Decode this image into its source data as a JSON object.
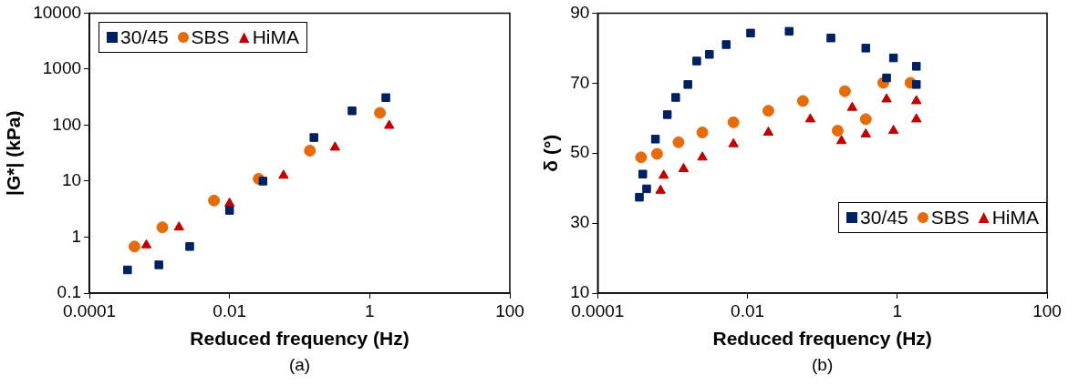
{
  "chart_data": [
    {
      "type": "scatter",
      "xlabel": "Reduced frequency (Hz)",
      "ylabel": "|G*| (kPa)",
      "log": "xy",
      "grid": false,
      "legend": "top left",
      "xlim": [
        0.0001,
        100
      ],
      "xticks": [
        0.0001,
        0.01,
        1,
        100
      ],
      "ylim": [
        0.1,
        10000
      ],
      "yticks": [
        0.1,
        1,
        10,
        100,
        1000,
        10000
      ],
      "annotations": [
        "(a)"
      ],
      "series": [
        {
          "name": "30/45",
          "color": "#002060",
          "marker": "square",
          "x": [
            0.00035,
            0.00098,
            0.0027,
            0.01,
            0.03,
            0.16,
            0.56,
            1.7
          ],
          "values": [
            0.26,
            0.32,
            0.68,
            3,
            10,
            60,
            180,
            310
          ]
        },
        {
          "name": "SBS",
          "color": "#e46c0a",
          "marker": "circle",
          "x": [
            0.00044,
            0.0011,
            0.006,
            0.026,
            0.14,
            1.4
          ],
          "values": [
            0.68,
            1.5,
            4.5,
            11,
            35,
            166
          ]
        },
        {
          "name": "HiMA",
          "color": "#c00000",
          "marker": "triangle",
          "x": [
            0.00065,
            0.0019,
            0.01,
            0.059,
            0.32,
            1.9
          ],
          "values": [
            0.72,
            1.5,
            4,
            12.6,
            40,
            98
          ]
        }
      ]
    },
    {
      "type": "scatter",
      "xlabel": "Reduced frequency (Hz)",
      "ylabel": "δ (°)",
      "log": "x",
      "grid": false,
      "legend": "bottom right",
      "xlim": [
        0.0001,
        100
      ],
      "xticks": [
        0.0001,
        0.01,
        1,
        100
      ],
      "ylim": [
        10,
        90
      ],
      "yticks": [
        10,
        30,
        50,
        70,
        90
      ],
      "annotations": [
        "(b)"
      ],
      "series": [
        {
          "name": "30/45",
          "color": "#002060",
          "marker": "square",
          "x": [
            0.00036,
            0.00045,
            0.0004,
            0.00059,
            0.00085,
            0.0011,
            0.0016,
            0.0021,
            0.0031,
            0.0052,
            0.011,
            0.036,
            0.13,
            0.38,
            0.89,
            1.8,
            1.8,
            0.72
          ],
          "values": [
            37.4,
            39.8,
            44,
            54,
            61,
            65.9,
            69.6,
            76.3,
            78.2,
            81,
            84.3,
            84.8,
            82.9,
            80,
            77.2,
            74.8,
            69.6,
            71.5
          ]
        },
        {
          "name": "SBS",
          "color": "#e46c0a",
          "marker": "circle",
          "x": [
            0.00038,
            0.00062,
            0.0012,
            0.0025,
            0.0065,
            0.019,
            0.055,
            0.2,
            0.65,
            1.5,
            0.16,
            0.38
          ],
          "values": [
            48.8,
            49.8,
            53.1,
            55.9,
            58.8,
            62.1,
            64.9,
            67.7,
            70.1,
            70.1,
            56.4,
            59.7
          ]
        },
        {
          "name": "HiMA",
          "color": "#c00000",
          "marker": "triangle",
          "x": [
            0.00069,
            0.00076,
            0.0014,
            0.0025,
            0.0065,
            0.019,
            0.069,
            0.25,
            0.72,
            1.8,
            0.18,
            0.38,
            0.89,
            1.8
          ],
          "values": [
            39.3,
            43.6,
            45.5,
            48.8,
            52.6,
            55.9,
            59.7,
            63,
            65.4,
            64.9,
            53.5,
            55.4,
            56.4,
            59.7
          ]
        }
      ]
    }
  ]
}
